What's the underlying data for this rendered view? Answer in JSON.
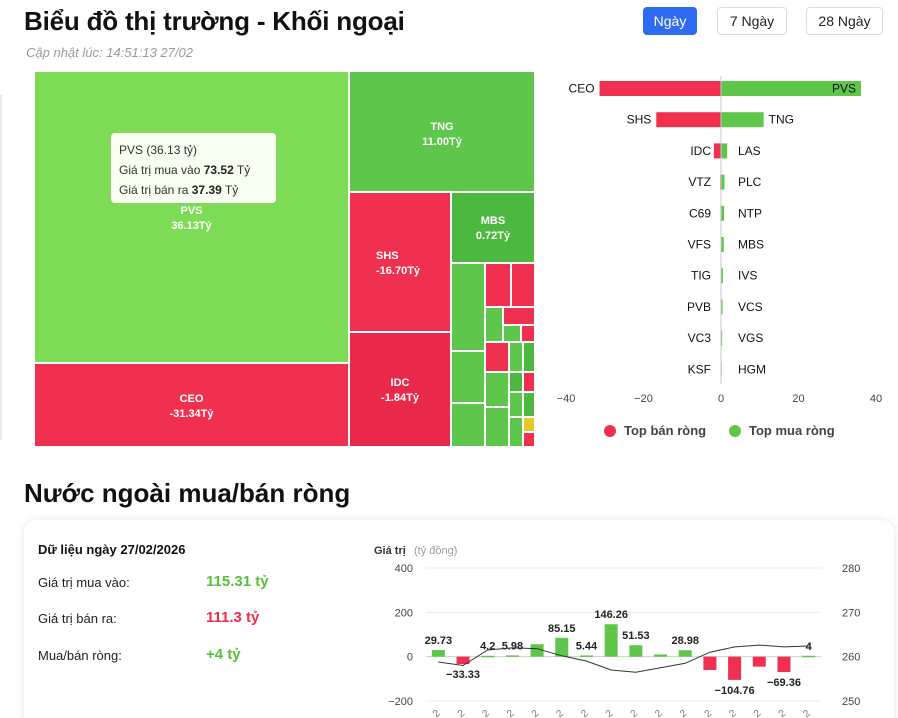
{
  "header": {
    "title": "Biểu đồ thị trường - Khối ngoại",
    "updated": "Cập nhật lúc: 14:51:13 27/02",
    "ranges": [
      "Ngày",
      "7 Ngày",
      "28 Ngày"
    ],
    "active_range": "Ngày"
  },
  "treemap": {
    "tiles": [
      {
        "symbol": "PVS",
        "value": "36.13Tỷ"
      },
      {
        "symbol": "CEO",
        "value": "-31.34Tỷ"
      },
      {
        "symbol": "TNG",
        "value": "11.00Tỷ"
      },
      {
        "symbol": "SHS",
        "value": "-16.70Tỷ"
      },
      {
        "symbol": "MBS",
        "value": "0.72Tỷ"
      },
      {
        "symbol": "IDC",
        "value": "-1.84Tỷ"
      }
    ],
    "tooltip": {
      "title": "PVS (36.13 tỷ)",
      "buy_label": "Giá trị mua vào",
      "buy_value": "73.52",
      "sell_label": "Giá trị bán ra",
      "sell_value": "37.39",
      "unit": "Tỷ"
    }
  },
  "colors": {
    "buy": "#5ec64a",
    "sell": "#f0304f",
    "accent": "#2f6bf0"
  },
  "chart_data": [
    {
      "type": "bar",
      "orientation": "horizontal-diverging",
      "sell_symbols": [
        "CEO",
        "SHS",
        "IDC",
        "VTZ",
        "C69",
        "VFS",
        "TIG",
        "PVB",
        "VC3",
        "KSF"
      ],
      "sell_values": [
        -31.34,
        -16.7,
        -1.84,
        -0.2,
        -0.15,
        -0.12,
        -0.1,
        -0.08,
        -0.06,
        -0.05
      ],
      "buy_symbols": [
        "PVS",
        "TNG",
        "LAS",
        "PLC",
        "NTP",
        "MBS",
        "IVS",
        "VCS",
        "VGS",
        "HGM"
      ],
      "buy_values": [
        36.13,
        11.0,
        1.6,
        0.9,
        0.8,
        0.72,
        0.5,
        0.4,
        0.3,
        0.2
      ],
      "xlim": [
        -40,
        40
      ],
      "xticks": [
        -40,
        -20,
        0,
        20,
        40
      ],
      "legend": [
        "Top bán ròng",
        "Top mua ròng"
      ],
      "legend_position": "bottom"
    },
    {
      "type": "bar",
      "ylabel": "Giá trị",
      "ylabel_unit": "(tỷ đồng)",
      "ylim": [
        -200,
        400
      ],
      "yticks": [
        -200,
        0,
        200,
        400
      ],
      "y2lim": [
        250,
        280
      ],
      "y2ticks": [
        250,
        260,
        270,
        280
      ],
      "values": [
        29.73,
        -33.33,
        4.2,
        5.98,
        56,
        85.15,
        5.44,
        146.26,
        51.53,
        10,
        28.98,
        -60,
        -104.76,
        -45,
        -69.36,
        4
      ],
      "labels": [
        "29.73",
        "-33.33",
        "4.2",
        "5.98",
        "",
        "85.15",
        "5.44",
        "146.26",
        "51.53",
        "",
        "28.98",
        "",
        "-104.76",
        "",
        "-69.36",
        "4"
      ],
      "line_values": [
        258.8,
        258.0,
        261.5,
        262.0,
        261.8,
        260.2,
        259.0,
        257.0,
        256.5,
        257.5,
        258.5,
        261.0,
        262.2,
        262.6,
        262.2,
        262.4
      ],
      "x_tick_labels": [
        "2",
        "2",
        "2",
        "2",
        "2",
        "2",
        "2",
        "2",
        "2",
        "2",
        "2",
        "2",
        "2",
        "2",
        "2",
        "2"
      ]
    }
  ],
  "net_section": {
    "title": "Nước ngoài mua/bán ròng",
    "date_label": "Dữ liệu ngày 27/02/2026",
    "buy_label": "Giá trị mua vào:",
    "buy_value": "115.31 tỷ",
    "sell_label": "Giá trị bán ra:",
    "sell_value": "111.3 tỷ",
    "net_label": "Mua/bán ròng:",
    "net_value": "+4 tỷ"
  }
}
